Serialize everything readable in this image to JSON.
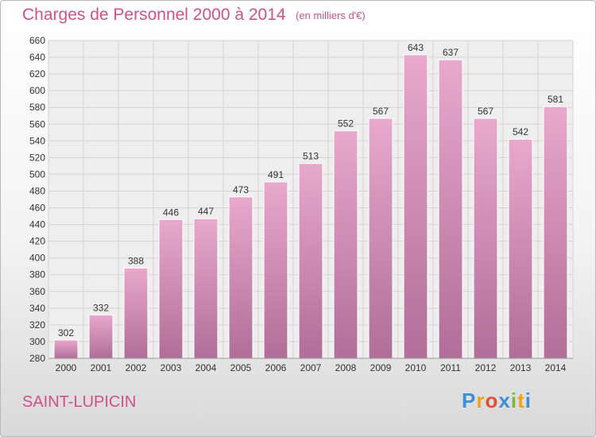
{
  "header": {
    "title": "Charges de Personnel 2000 à 2014",
    "subtitle": "(en milliers d'€)"
  },
  "footer": {
    "location": "SAINT-LUPICIN",
    "logo_text": "Proxiti"
  },
  "colors": {
    "title": "#d0508a",
    "bar_top": "#e8a9cd",
    "bar_bottom": "#b06e98",
    "grid": "#d4d4d4",
    "logo_letters": [
      "#3a8fd6",
      "#f0a21a",
      "#e04f2f",
      "#3a8fd6",
      "#7cb83a",
      "#f0a21a",
      "#3a8fd6"
    ]
  },
  "chart_data": {
    "type": "bar",
    "title": "Charges de Personnel 2000 à 2014",
    "subtitle": "(en milliers d'€)",
    "xlabel": "",
    "ylabel": "",
    "categories": [
      "2000",
      "2001",
      "2002",
      "2003",
      "2004",
      "2005",
      "2006",
      "2007",
      "2008",
      "2009",
      "2010",
      "2011",
      "2012",
      "2013",
      "2014"
    ],
    "values": [
      302,
      332,
      388,
      446,
      447,
      473,
      491,
      513,
      552,
      567,
      643,
      637,
      567,
      542,
      581
    ],
    "ylim": [
      280,
      660
    ],
    "yticks": [
      280,
      300,
      320,
      340,
      360,
      380,
      400,
      420,
      440,
      460,
      480,
      500,
      520,
      540,
      560,
      580,
      600,
      620,
      640,
      660
    ],
    "grid": true,
    "data_labels": true
  }
}
